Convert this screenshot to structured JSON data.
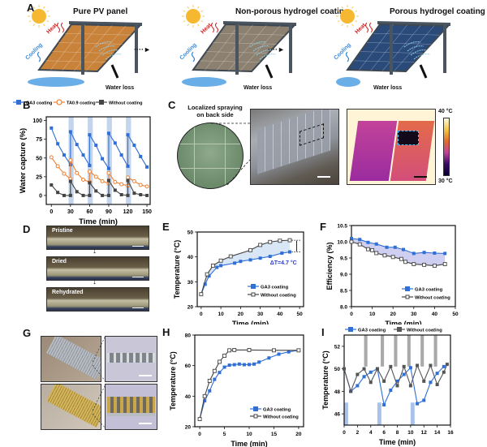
{
  "panel_labels": {
    "A": "A",
    "B": "B",
    "C": "C",
    "D": "D",
    "E": "E",
    "F": "F",
    "G": "G",
    "H": "H",
    "I": "I"
  },
  "panel_a": {
    "scenes": [
      {
        "title": "Pure PV panel",
        "heat": "Heat",
        "cooling": "Cooling",
        "water": "Water loss",
        "panel_color": "#c8823a",
        "puddle": "large"
      },
      {
        "title": "Non-porous hydrogel coating",
        "heat": "Heat",
        "cooling": "Cooling",
        "water": "Water loss",
        "panel_color": "#8c8070",
        "puddle": "medium"
      },
      {
        "title": "Porous hydrogel coating",
        "heat": "Heat",
        "cooling": "Cooling",
        "water": "Water loss",
        "panel_color": "#2a4a7a",
        "puddle": "small"
      }
    ],
    "arrow": "····►"
  },
  "panel_c": {
    "inset_label_line1": "Localized spraying",
    "inset_label_line2": "on back side",
    "colorbar_max": "40 °C",
    "colorbar_min": "30 °C"
  },
  "panel_d": {
    "labels": [
      "Pristine",
      "Dried",
      "Rehydrated"
    ]
  },
  "colors": {
    "blue": "#2f6fd6",
    "orange": "#f08030",
    "gray": "#444444",
    "shade_blue": "#b9cdea",
    "shade_gray": "#a9a9a9"
  },
  "chart_data": [
    {
      "id": "B",
      "type": "line",
      "title": "",
      "xlabel": "Time (min)",
      "ylabel": "Water capture (%)",
      "xlim": [
        -8,
        155
      ],
      "ylim": [
        -12,
        105
      ],
      "xticks": [
        0,
        30,
        60,
        90,
        120,
        150
      ],
      "yticks": [
        0,
        25,
        50,
        75,
        100
      ],
      "shaded_x": [
        [
          27,
          35
        ],
        [
          57,
          65
        ],
        [
          87,
          95
        ],
        [
          117,
          125
        ]
      ],
      "legend_position": "top",
      "series": [
        {
          "name": "GA3 coating",
          "marker": "square-filled",
          "color": "#2f6fd6",
          "x": [
            0,
            10,
            20,
            30,
            30,
            40,
            50,
            60,
            60,
            70,
            80,
            90,
            90,
            100,
            110,
            120,
            120,
            130,
            140,
            150
          ],
          "y": [
            90,
            69,
            54,
            41,
            85,
            68,
            54,
            40,
            81,
            67,
            49,
            36,
            83,
            70,
            54,
            39,
            81,
            67,
            52,
            38
          ]
        },
        {
          "name": "TA0.9 coating",
          "marker": "circle-open",
          "color": "#f08030",
          "x": [
            0,
            10,
            20,
            30,
            30,
            40,
            50,
            60,
            60,
            70,
            80,
            90,
            90,
            100,
            110,
            120,
            120,
            130,
            140,
            150
          ],
          "y": [
            51,
            39,
            29,
            22,
            47,
            30,
            21,
            18,
            32,
            25,
            19,
            16,
            30,
            18,
            15,
            13,
            24,
            19,
            14,
            12
          ]
        },
        {
          "name": "Without coating",
          "marker": "square-filled",
          "color": "#444444",
          "x": [
            0,
            10,
            20,
            30,
            30,
            40,
            50,
            60,
            60,
            70,
            80,
            90,
            90,
            100,
            110,
            120,
            120,
            130,
            140,
            150
          ],
          "y": [
            14,
            4,
            0,
            0,
            19,
            5,
            0,
            0,
            17,
            6,
            0,
            0,
            20,
            7,
            1,
            0,
            20,
            3,
            1,
            0
          ]
        }
      ]
    },
    {
      "id": "E",
      "type": "line",
      "xlabel": "Time (min)",
      "ylabel": "Temperature (°C)",
      "xlim": [
        -2,
        52
      ],
      "ylim": [
        20,
        50
      ],
      "xticks": [
        0,
        10,
        20,
        30,
        40,
        50
      ],
      "yticks": [
        20,
        30,
        40,
        50
      ],
      "annotation": "ΔT=4.7 °C",
      "legend_position": "bottom-right",
      "series": [
        {
          "name": "GA3 coating",
          "marker": "square-filled",
          "color": "#2f6fd6",
          "x": [
            0,
            2,
            4,
            8,
            10,
            17,
            20,
            25,
            30,
            35,
            41,
            45
          ],
          "y": [
            25,
            29,
            32.3,
            35.8,
            36.5,
            37.5,
            38.2,
            38.8,
            39.5,
            40.2,
            41.5,
            42
          ]
        },
        {
          "name": "Without coating",
          "marker": "square-open",
          "color": "#444444",
          "x": [
            0,
            3,
            6,
            10,
            15,
            25,
            30,
            35,
            40,
            45
          ],
          "y": [
            25,
            33,
            36.5,
            38.5,
            40.2,
            42.7,
            44.8,
            46,
            46.5,
            46.7
          ]
        }
      ]
    },
    {
      "id": "F",
      "type": "line",
      "xlabel": "Time (min)",
      "ylabel": "Efficiency (%)",
      "xlim": [
        0,
        50
      ],
      "ylim": [
        8.0,
        10.5
      ],
      "xticks": [
        0,
        10,
        20,
        30,
        40,
        50
      ],
      "yticks": [
        8.0,
        8.5,
        9.0,
        9.5,
        10.0,
        10.5
      ],
      "legend_position": "bottom-right",
      "series": [
        {
          "name": "GA3 coating",
          "marker": "square-filled",
          "color": "#2f6fd6",
          "x": [
            0,
            4,
            8,
            12,
            17,
            21,
            25,
            30,
            35,
            40,
            45
          ],
          "y": [
            10.1,
            10.07,
            9.98,
            9.93,
            9.83,
            9.83,
            9.76,
            9.64,
            9.67,
            9.65,
            9.64
          ]
        },
        {
          "name": "Without coating",
          "marker": "square-open",
          "color": "#444444",
          "x": [
            0,
            4,
            8,
            10,
            12,
            16,
            20,
            24,
            26,
            30,
            35,
            40,
            45
          ],
          "y": [
            10.0,
            9.92,
            9.77,
            9.74,
            9.65,
            9.58,
            9.53,
            9.47,
            9.38,
            9.31,
            9.29,
            9.26,
            9.31
          ]
        }
      ]
    },
    {
      "id": "H",
      "type": "line",
      "xlabel": "Time (min)",
      "ylabel": "Temperature (°C)",
      "xlim": [
        -1,
        21
      ],
      "ylim": [
        20,
        80
      ],
      "xticks": [
        0,
        5,
        10,
        15,
        20
      ],
      "yticks": [
        20,
        40,
        60,
        80
      ],
      "legend_position": "bottom-right",
      "series": [
        {
          "name": "GA3 coating",
          "marker": "square-filled",
          "color": "#2f6fd6",
          "x": [
            0,
            1,
            2,
            3,
            4,
            5,
            6,
            7,
            8,
            9,
            10,
            11,
            12,
            14,
            16,
            18,
            20
          ],
          "y": [
            25,
            37,
            43.5,
            51,
            55.5,
            59,
            60.3,
            60.6,
            61,
            60.6,
            60.7,
            61,
            62.3,
            65,
            67.5,
            69,
            70
          ]
        },
        {
          "name": "Without coating",
          "marker": "square-open",
          "color": "#444444",
          "x": [
            0,
            1,
            2,
            3,
            4,
            5,
            6,
            7,
            10,
            15,
            20
          ],
          "y": [
            25,
            40,
            50,
            56.5,
            62.5,
            66.5,
            70,
            70.2,
            70.2,
            70,
            70
          ]
        }
      ]
    },
    {
      "id": "I",
      "type": "line",
      "xlabel": "Time (min)",
      "ylabel": "Temperature (°C)",
      "xlim": [
        0,
        16
      ],
      "ylim": [
        45,
        53
      ],
      "xticks": [
        0,
        2,
        4,
        6,
        8,
        10,
        12,
        14,
        16
      ],
      "yticks": [
        46,
        48,
        50,
        52
      ],
      "shaded_blue_x": [
        [
          0,
          0.6
        ],
        [
          5,
          5.6
        ],
        [
          10,
          10.6
        ]
      ],
      "shaded_gray_x": [
        [
          3,
          3.5
        ],
        [
          5.5,
          6
        ],
        [
          7.5,
          8
        ],
        [
          9.5,
          10
        ],
        [
          11.5,
          12
        ],
        [
          13.5,
          14
        ]
      ],
      "legend_position": "top",
      "series": [
        {
          "name": "GA3 coating",
          "marker": "square-filled",
          "color": "#2f6fd6",
          "x": [
            0,
            1,
            2,
            3,
            4,
            5,
            6,
            7,
            8,
            9,
            10,
            11,
            12,
            13,
            14,
            15
          ],
          "y": [
            50,
            48,
            48.5,
            49.3,
            49.7,
            50,
            46.8,
            48.1,
            48.9,
            49.5,
            50.1,
            46.9,
            47.2,
            48.8,
            49.6,
            50.2
          ]
        },
        {
          "name": "Without coating",
          "marker": "square-filled",
          "color": "#555555",
          "x": [
            0,
            1,
            2,
            3,
            4,
            5,
            6,
            7,
            8,
            9,
            10,
            11,
            12,
            13,
            14,
            15,
            15.5
          ],
          "y": [
            50,
            48,
            49.5,
            50,
            48.8,
            50,
            48.9,
            50.2,
            48.5,
            50.2,
            48.5,
            50.3,
            48.9,
            50.3,
            48.6,
            49.7,
            50.4
          ]
        }
      ]
    }
  ]
}
